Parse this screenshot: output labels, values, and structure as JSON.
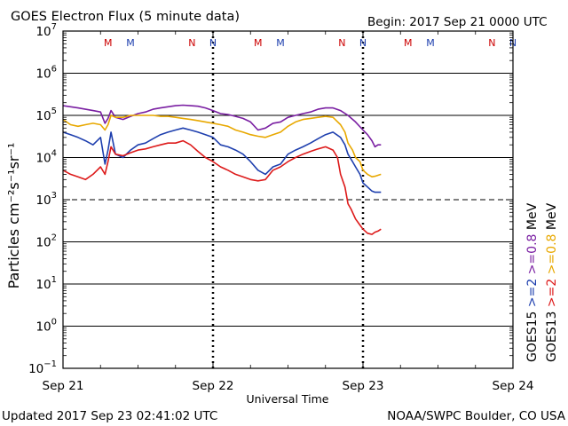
{
  "chart_data": {
    "type": "line",
    "title": "GOES Electron Flux (5 minute data)",
    "begin_label": "Begin: 2017 Sep 21 0000 UTC",
    "updated_label": "Updated 2017 Sep 23 02:41:02 UTC",
    "source_label": "NOAA/SWPC Boulder, CO USA",
    "xlabel": "Universal Time",
    "ylabel": "Particles cm⁻²s⁻¹sr⁻¹",
    "x_unit": "days since 2017 Sep 21 00:00 UTC",
    "xlim": [
      0,
      3
    ],
    "x_ticks": [
      {
        "value": 0,
        "label": "Sep 21"
      },
      {
        "value": 1,
        "label": "Sep 22"
      },
      {
        "value": 2,
        "label": "Sep 23"
      },
      {
        "value": 3,
        "label": "Sep 24"
      }
    ],
    "y_scale": "log",
    "ylim": [
      0.1,
      10000000
    ],
    "y_ticks": [
      {
        "value": 10000000,
        "base": "10",
        "exp": "7"
      },
      {
        "value": 1000000,
        "base": "10",
        "exp": "6"
      },
      {
        "value": 100000,
        "base": "10",
        "exp": "5"
      },
      {
        "value": 10000,
        "base": "10",
        "exp": "4"
      },
      {
        "value": 1000,
        "base": "10",
        "exp": "3"
      },
      {
        "value": 100,
        "base": "10",
        "exp": "2"
      },
      {
        "value": 10,
        "base": "10",
        "exp": "1"
      },
      {
        "value": 1,
        "base": "10",
        "exp": "0"
      },
      {
        "value": 0.1,
        "base": "10",
        "exp": "−1"
      }
    ],
    "solid_gridlines": [
      1000000,
      100000,
      10000,
      100,
      10,
      1
    ],
    "dashed_threshold": 1000,
    "day_boundaries": [
      1,
      2
    ],
    "mn_markers": [
      {
        "x": 0.3,
        "label": "M",
        "color": "#cc0000"
      },
      {
        "x": 0.45,
        "label": "M",
        "color": "#1e3fae"
      },
      {
        "x": 0.86,
        "label": "N",
        "color": "#cc0000"
      },
      {
        "x": 1.0,
        "label": "N",
        "color": "#1e3fae"
      },
      {
        "x": 1.3,
        "label": "M",
        "color": "#cc0000"
      },
      {
        "x": 1.45,
        "label": "M",
        "color": "#1e3fae"
      },
      {
        "x": 1.86,
        "label": "N",
        "color": "#cc0000"
      },
      {
        "x": 2.0,
        "label": "N",
        "color": "#1e3fae"
      },
      {
        "x": 2.3,
        "label": "M",
        "color": "#cc0000"
      },
      {
        "x": 2.45,
        "label": "M",
        "color": "#1e3fae"
      },
      {
        "x": 2.86,
        "label": "N",
        "color": "#cc0000"
      },
      {
        "x": 3.0,
        "label": "N",
        "color": "#1e3fae"
      }
    ],
    "legend": [
      {
        "sat": "GOES15",
        "sat_color": "#000000",
        "parts": [
          {
            "text": ">=2",
            "color": "#1e3fae"
          },
          {
            "text": ">=0.8",
            "color": "#7a1fa2"
          },
          {
            "text": "MeV",
            "color": "#000000"
          }
        ]
      },
      {
        "sat": "GOES13",
        "sat_color": "#000000",
        "parts": [
          {
            "text": ">=2",
            "color": "#dd1a1a"
          },
          {
            "text": ">=0.8",
            "color": "#e8a800"
          },
          {
            "text": "MeV",
            "color": "#000000"
          }
        ]
      }
    ],
    "series": [
      {
        "name": "GOES15 >=0.8 MeV",
        "color": "#7a1fa2",
        "x": [
          0,
          0.05,
          0.1,
          0.15,
          0.2,
          0.25,
          0.28,
          0.3,
          0.32,
          0.35,
          0.4,
          0.45,
          0.5,
          0.55,
          0.6,
          0.65,
          0.7,
          0.75,
          0.8,
          0.85,
          0.9,
          0.95,
          1.0,
          1.05,
          1.1,
          1.15,
          1.2,
          1.25,
          1.3,
          1.35,
          1.4,
          1.45,
          1.5,
          1.55,
          1.6,
          1.65,
          1.7,
          1.75,
          1.8,
          1.85,
          1.9,
          1.95,
          2.0,
          2.03,
          2.06,
          2.08,
          2.1,
          2.12
        ],
        "y": [
          170000,
          160000,
          150000,
          140000,
          130000,
          120000,
          65000,
          85000,
          130000,
          90000,
          80000,
          95000,
          110000,
          120000,
          140000,
          150000,
          160000,
          170000,
          175000,
          170000,
          165000,
          150000,
          130000,
          110000,
          105000,
          95000,
          85000,
          70000,
          45000,
          50000,
          65000,
          70000,
          90000,
          100000,
          110000,
          120000,
          140000,
          150000,
          150000,
          130000,
          100000,
          70000,
          45000,
          35000,
          25000,
          18000,
          20000,
          20000
        ]
      },
      {
        "name": "GOES13 >=0.8 MeV",
        "color": "#e8a800",
        "x": [
          0,
          0.05,
          0.1,
          0.15,
          0.2,
          0.25,
          0.28,
          0.3,
          0.32,
          0.35,
          0.4,
          0.45,
          0.5,
          0.55,
          0.6,
          0.65,
          0.7,
          0.75,
          0.8,
          0.85,
          0.9,
          0.95,
          1.0,
          1.05,
          1.1,
          1.15,
          1.2,
          1.25,
          1.3,
          1.35,
          1.4,
          1.45,
          1.5,
          1.55,
          1.6,
          1.65,
          1.7,
          1.75,
          1.8,
          1.85,
          1.88,
          1.9,
          1.93,
          1.95,
          1.98,
          2.0,
          2.03,
          2.06,
          2.08,
          2.1,
          2.12
        ],
        "y": [
          80000,
          60000,
          55000,
          60000,
          65000,
          60000,
          45000,
          60000,
          100000,
          90000,
          90000,
          100000,
          100000,
          100000,
          100000,
          95000,
          95000,
          90000,
          85000,
          80000,
          75000,
          70000,
          65000,
          60000,
          55000,
          45000,
          40000,
          35000,
          32000,
          30000,
          35000,
          40000,
          55000,
          70000,
          80000,
          85000,
          90000,
          95000,
          90000,
          60000,
          40000,
          22000,
          15000,
          10000,
          8000,
          5000,
          4000,
          3500,
          3600,
          3800,
          4000
        ]
      },
      {
        "name": "GOES15 >=2 MeV",
        "color": "#1e3fae",
        "x": [
          0,
          0.05,
          0.1,
          0.15,
          0.2,
          0.25,
          0.28,
          0.3,
          0.32,
          0.35,
          0.4,
          0.45,
          0.5,
          0.55,
          0.6,
          0.65,
          0.7,
          0.75,
          0.8,
          0.85,
          0.9,
          0.95,
          1.0,
          1.05,
          1.1,
          1.15,
          1.2,
          1.25,
          1.3,
          1.35,
          1.4,
          1.45,
          1.5,
          1.55,
          1.6,
          1.65,
          1.7,
          1.75,
          1.8,
          1.85,
          1.88,
          1.9,
          1.93,
          1.95,
          1.98,
          2.0,
          2.03,
          2.06,
          2.08,
          2.1,
          2.12
        ],
        "y": [
          40000,
          35000,
          30000,
          25000,
          20000,
          30000,
          7000,
          15000,
          40000,
          12000,
          10000,
          15000,
          20000,
          22000,
          28000,
          35000,
          40000,
          45000,
          50000,
          45000,
          40000,
          35000,
          30000,
          20000,
          18000,
          15000,
          12000,
          8000,
          5000,
          4000,
          6000,
          7000,
          12000,
          15000,
          18000,
          22000,
          28000,
          35000,
          40000,
          30000,
          20000,
          12000,
          8000,
          6000,
          4000,
          2500,
          2000,
          1600,
          1500,
          1500,
          1500
        ]
      },
      {
        "name": "GOES13 >=2 MeV",
        "color": "#dd1a1a",
        "x": [
          0,
          0.05,
          0.1,
          0.15,
          0.2,
          0.25,
          0.28,
          0.3,
          0.32,
          0.35,
          0.4,
          0.45,
          0.5,
          0.55,
          0.6,
          0.65,
          0.7,
          0.75,
          0.8,
          0.85,
          0.9,
          0.95,
          1.0,
          1.05,
          1.1,
          1.15,
          1.2,
          1.25,
          1.3,
          1.35,
          1.4,
          1.45,
          1.5,
          1.55,
          1.6,
          1.65,
          1.7,
          1.75,
          1.8,
          1.83,
          1.85,
          1.88,
          1.9,
          1.92,
          1.95,
          1.98,
          2.0,
          2.03,
          2.06,
          2.08,
          2.1,
          2.12
        ],
        "y": [
          5000,
          4000,
          3500,
          3000,
          4000,
          6000,
          4000,
          8000,
          18000,
          12000,
          11000,
          13000,
          15000,
          16000,
          18000,
          20000,
          22000,
          22000,
          25000,
          20000,
          14000,
          10000,
          8000,
          6000,
          5000,
          4000,
          3500,
          3000,
          2800,
          3000,
          5000,
          6000,
          8000,
          10000,
          12000,
          14000,
          16000,
          18000,
          15000,
          10000,
          4000,
          2000,
          800,
          600,
          350,
          250,
          200,
          160,
          150,
          170,
          180,
          200
        ]
      }
    ]
  }
}
